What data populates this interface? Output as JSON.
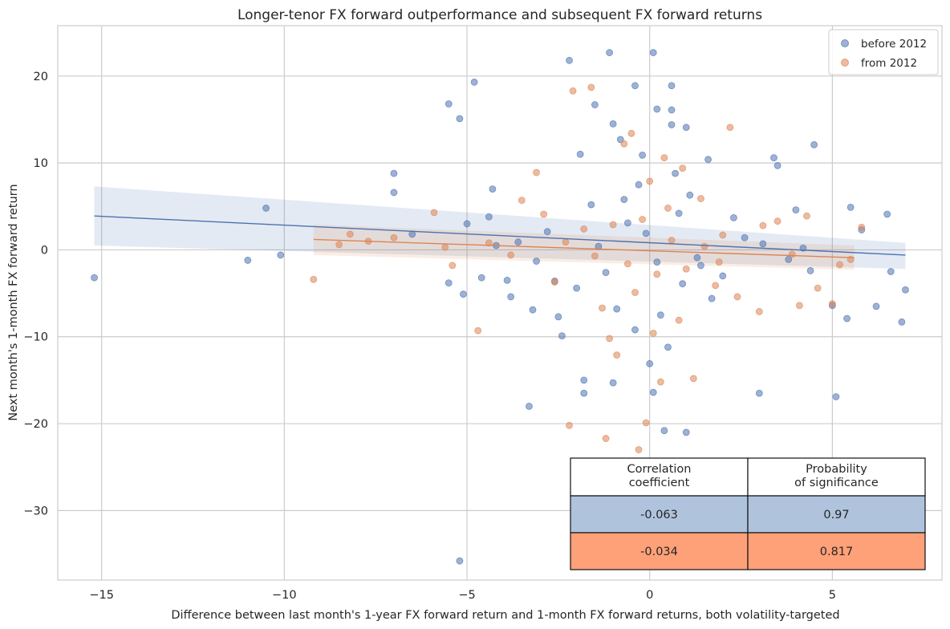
{
  "chart_data": {
    "type": "scatter",
    "title": "Longer-tenor FX forward outperformance and subsequent FX forward returns",
    "xlabel": "Difference between last month's 1-year FX forward return and 1-month FX forward returns, both volatility-targeted",
    "ylabel": "Next month's 1-month FX forward return",
    "xlim": [
      -16.2,
      8.0
    ],
    "ylim": [
      -38.0,
      25.8
    ],
    "x_ticks": [
      -15,
      -10,
      -5,
      0,
      5
    ],
    "y_ticks": [
      -30,
      -20,
      -10,
      0,
      10,
      20
    ],
    "x_tick_labels": [
      "−15",
      "−10",
      "−5",
      "0",
      "5"
    ],
    "y_tick_labels": [
      "−30",
      "−20",
      "−10",
      "0",
      "10",
      "20"
    ],
    "grid": true,
    "legend": "top-right",
    "series": [
      {
        "name": "before 2012",
        "color": "#4c72b0",
        "regression": {
          "x": [
            -15.2,
            7.0
          ],
          "y": [
            3.9,
            -0.6
          ],
          "ci_start": [
            0.5,
            7.3
          ],
          "ci_end": [
            -2.2,
            0.8
          ]
        },
        "points": [
          [
            -15.2,
            -3.2
          ],
          [
            -11,
            -1.2
          ],
          [
            -10.5,
            4.8
          ],
          [
            -10.1,
            -0.6
          ],
          [
            -7,
            8.8
          ],
          [
            -7,
            6.6
          ],
          [
            -6.5,
            1.8
          ],
          [
            -5.5,
            16.8
          ],
          [
            -5.2,
            15.1
          ],
          [
            -4.8,
            19.3
          ],
          [
            -5.5,
            -3.8
          ],
          [
            -5.1,
            -5.1
          ],
          [
            -5.0,
            3.0
          ],
          [
            -4.3,
            7.0
          ],
          [
            -4.4,
            3.8
          ],
          [
            -5.2,
            -35.8
          ],
          [
            -4.6,
            -3.2
          ],
          [
            -3.8,
            -5.4
          ],
          [
            -3.9,
            -3.5
          ],
          [
            -3.3,
            -18
          ],
          [
            -3.2,
            -6.9
          ],
          [
            -2.6,
            -3.6
          ],
          [
            -2.5,
            -7.7
          ],
          [
            -2.4,
            -9.9
          ],
          [
            -2.2,
            21.8
          ],
          [
            -1.9,
            11
          ],
          [
            -1.5,
            16.7
          ],
          [
            -1.1,
            22.7
          ],
          [
            -1.0,
            14.5
          ],
          [
            -0.8,
            12.7
          ],
          [
            0.1,
            22.7
          ],
          [
            -0.4,
            18.9
          ],
          [
            0.6,
            18.9
          ],
          [
            0.6,
            16.1
          ],
          [
            0.6,
            14.4
          ],
          [
            0.2,
            16.2
          ],
          [
            1.0,
            14.1
          ],
          [
            1.6,
            10.4
          ],
          [
            3.4,
            10.6
          ],
          [
            4.5,
            12.1
          ],
          [
            3.5,
            9.7
          ],
          [
            4.0,
            4.6
          ],
          [
            5.5,
            4.9
          ],
          [
            6.5,
            4.1
          ],
          [
            5.8,
            2.3
          ],
          [
            7.0,
            -4.6
          ],
          [
            6.9,
            -8.3
          ],
          [
            6.2,
            -6.5
          ],
          [
            6.6,
            -2.5
          ],
          [
            5.1,
            -16.9
          ],
          [
            5.4,
            -7.9
          ],
          [
            5.0,
            -6.4
          ],
          [
            4.4,
            -2.4
          ],
          [
            3.0,
            -16.5
          ],
          [
            1.0,
            -21
          ],
          [
            0.4,
            -20.8
          ],
          [
            0.1,
            -16.4
          ],
          [
            -1.0,
            -15.3
          ],
          [
            -1.8,
            -15
          ],
          [
            -1.8,
            -16.5
          ],
          [
            2.0,
            -3.0
          ],
          [
            -0.3,
            7.5
          ],
          [
            0.3,
            -7.5
          ],
          [
            -0.6,
            3.1
          ],
          [
            0.8,
            4.2
          ],
          [
            -1.2,
            -2.6
          ],
          [
            1.4,
            -1.8
          ],
          [
            -0.2,
            10.9
          ],
          [
            0.5,
            -11.2
          ],
          [
            -2.8,
            2.1
          ],
          [
            2.6,
            1.4
          ],
          [
            -0.9,
            -6.8
          ],
          [
            1.1,
            6.3
          ],
          [
            -3.6,
            0.9
          ],
          [
            3.8,
            -1.1
          ],
          [
            0.0,
            -13.1
          ],
          [
            -1.6,
            5.2
          ],
          [
            1.7,
            -5.6
          ],
          [
            -0.4,
            -9.2
          ],
          [
            0.7,
            8.8
          ],
          [
            -2.0,
            -4.4
          ],
          [
            2.3,
            3.7
          ],
          [
            -0.1,
            1.9
          ],
          [
            0.2,
            -1.4
          ],
          [
            -1.4,
            0.4
          ],
          [
            1.3,
            -0.9
          ],
          [
            3.1,
            0.7
          ],
          [
            -3.1,
            -1.3
          ],
          [
            4.2,
            0.2
          ],
          [
            -4.2,
            0.5
          ],
          [
            0.9,
            -3.9
          ],
          [
            -0.7,
            5.8
          ]
        ]
      },
      {
        "name": "from 2012",
        "color": "#dd8452",
        "regression": {
          "x": [
            -9.2,
            5.6
          ],
          "y": [
            1.2,
            -0.9
          ],
          "ci_start": [
            -0.6,
            2.9
          ],
          "ci_end": [
            -2.3,
            0.5
          ]
        },
        "points": [
          [
            -9.2,
            -3.4
          ],
          [
            -8.5,
            0.6
          ],
          [
            -8.2,
            1.8
          ],
          [
            -7.7,
            1.0
          ],
          [
            -7.0,
            1.4
          ],
          [
            -5.9,
            4.3
          ],
          [
            -5.6,
            0.3
          ],
          [
            -5.4,
            -1.8
          ],
          [
            -4.7,
            -9.3
          ],
          [
            -4.4,
            0.8
          ],
          [
            -3.5,
            5.7
          ],
          [
            -3.1,
            8.9
          ],
          [
            -2.2,
            -20.2
          ],
          [
            -2.1,
            18.3
          ],
          [
            -1.6,
            18.7
          ],
          [
            -1.2,
            -21.7
          ],
          [
            -0.3,
            -23
          ],
          [
            -0.1,
            -19.9
          ],
          [
            1.2,
            -14.8
          ],
          [
            2.2,
            14.1
          ],
          [
            3.0,
            -7.1
          ],
          [
            3.5,
            3.3
          ],
          [
            4.3,
            3.9
          ],
          [
            5.0,
            -6.2
          ],
          [
            5.2,
            -1.7
          ],
          [
            5.5,
            -1.1
          ],
          [
            5.8,
            2.6
          ],
          [
            4.6,
            -4.4
          ],
          [
            4.1,
            -6.4
          ],
          [
            3.1,
            2.8
          ],
          [
            2.4,
            -5.4
          ],
          [
            1.8,
            -4.1
          ],
          [
            1.4,
            5.9
          ],
          [
            0.8,
            -8.1
          ],
          [
            0.4,
            10.6
          ],
          [
            -0.5,
            13.4
          ],
          [
            -0.9,
            -12.1
          ],
          [
            -1.3,
            -6.7
          ],
          [
            -1.8,
            2.4
          ],
          [
            -2.6,
            -3.7
          ],
          [
            -2.9,
            4.1
          ],
          [
            0.2,
            -2.8
          ],
          [
            -0.2,
            3.5
          ],
          [
            0.6,
            1.1
          ],
          [
            -0.6,
            -1.6
          ],
          [
            1.0,
            -2.2
          ],
          [
            -1.0,
            2.9
          ],
          [
            1.5,
            0.4
          ],
          [
            -1.5,
            -0.7
          ],
          [
            2.0,
            1.7
          ],
          [
            -2.3,
            0.9
          ],
          [
            0.0,
            7.9
          ],
          [
            0.1,
            -9.6
          ],
          [
            -0.4,
            -4.9
          ],
          [
            0.5,
            4.8
          ],
          [
            0.3,
            -15.2
          ],
          [
            -0.7,
            12.2
          ],
          [
            1.9,
            -1.4
          ],
          [
            -3.8,
            -0.6
          ],
          [
            3.9,
            -0.5
          ],
          [
            0.9,
            9.4
          ],
          [
            -1.1,
            -10.2
          ]
        ]
      }
    ],
    "table": {
      "headers": [
        "Correlation\ncoefficient",
        "Probability\nof significance"
      ],
      "rows": [
        {
          "color": "#afc3dd",
          "cells": [
            "-0.063",
            "0.97"
          ]
        },
        {
          "color": "#fea078",
          "cells": [
            "-0.034",
            "0.817"
          ]
        }
      ]
    }
  }
}
